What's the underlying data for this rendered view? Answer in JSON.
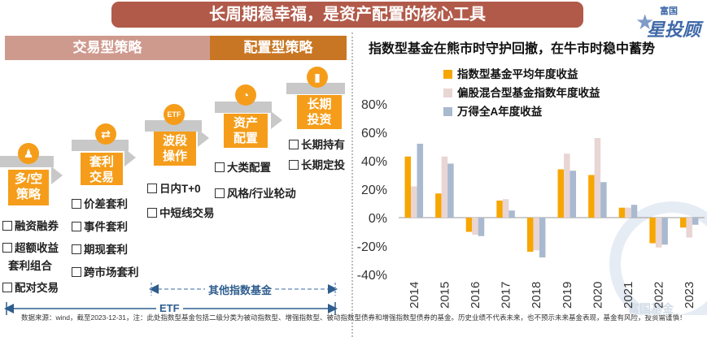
{
  "banner": "长周期稳幸福，是资产配置的核心工具",
  "logo": {
    "top": "富国",
    "main": "星投顾",
    "watermark": "富国基金"
  },
  "left": {
    "header_trade": "交易型策略",
    "header_alloc": "配置型策略",
    "steps": [
      {
        "label": "多/空\n策略",
        "icon": "people-icon",
        "icon_glyph": "♟"
      },
      {
        "label": "套利\n交易",
        "icon": "exchange-icon",
        "icon_glyph": "⇄"
      },
      {
        "label": "波段\n操作",
        "icon": "etf-icon",
        "icon_glyph": "ETF"
      },
      {
        "label": "资产\n配置",
        "icon": "pie-icon",
        "icon_glyph": "◔"
      },
      {
        "label": "长期\n投资",
        "icon": "growth-chart-icon",
        "icon_glyph": "▮"
      }
    ],
    "checklists": {
      "longshort": [
        "融资融券",
        "超额收益\n套利组合",
        "配对交易"
      ],
      "arbitrage": [
        "价差套利",
        "事件套利",
        "期现套利",
        "跨市场套利"
      ],
      "swing": [
        "日内T+0",
        "中短线交易"
      ],
      "allocation": [
        "大类配置",
        "风格/行业轮动"
      ],
      "longterm": [
        "长期持有",
        "长期定投"
      ]
    },
    "bracket_other": "其他指数基金",
    "bracket_etf": "ETF"
  },
  "footnote": "数据来源：wind，截至2023-12-31，注：此处指数型基金包括二级分类为被动指数型、增强指数型、被动指数型债券和增强指数型债券的基金。历史业绩不代表未来，也不预示未来基金表现，基金有风险，投资需谨慎！",
  "chart_data": {
    "type": "bar",
    "title": "指数型基金在熊市时守护回撤，在牛市时稳中蓄势",
    "categories": [
      "2014",
      "2015",
      "2016",
      "2017",
      "2018",
      "2019",
      "2020",
      "2021",
      "2022",
      "2023"
    ],
    "series": [
      {
        "name": "指数型基金平均年度收益",
        "color": "#f7a600",
        "values": [
          43,
          17,
          -10,
          12,
          -24,
          34,
          30,
          7,
          -18,
          -7
        ]
      },
      {
        "name": "偏股混合型基金指数年度收益",
        "color": "#e8d5d4",
        "values": [
          22,
          43,
          -12,
          13,
          -23,
          45,
          56,
          7,
          -21,
          -14
        ]
      },
      {
        "name": "万得全A年度收益",
        "color": "#a9b9cf",
        "values": [
          52,
          38,
          -13,
          5,
          -28,
          33,
          25,
          9,
          -19,
          -5
        ]
      }
    ],
    "yticks": [
      "80%",
      "60%",
      "40%",
      "20%",
      "0%",
      "-20%",
      "-40%"
    ],
    "ylim": [
      -40,
      80
    ],
    "ylabel": "",
    "xlabel": ""
  }
}
